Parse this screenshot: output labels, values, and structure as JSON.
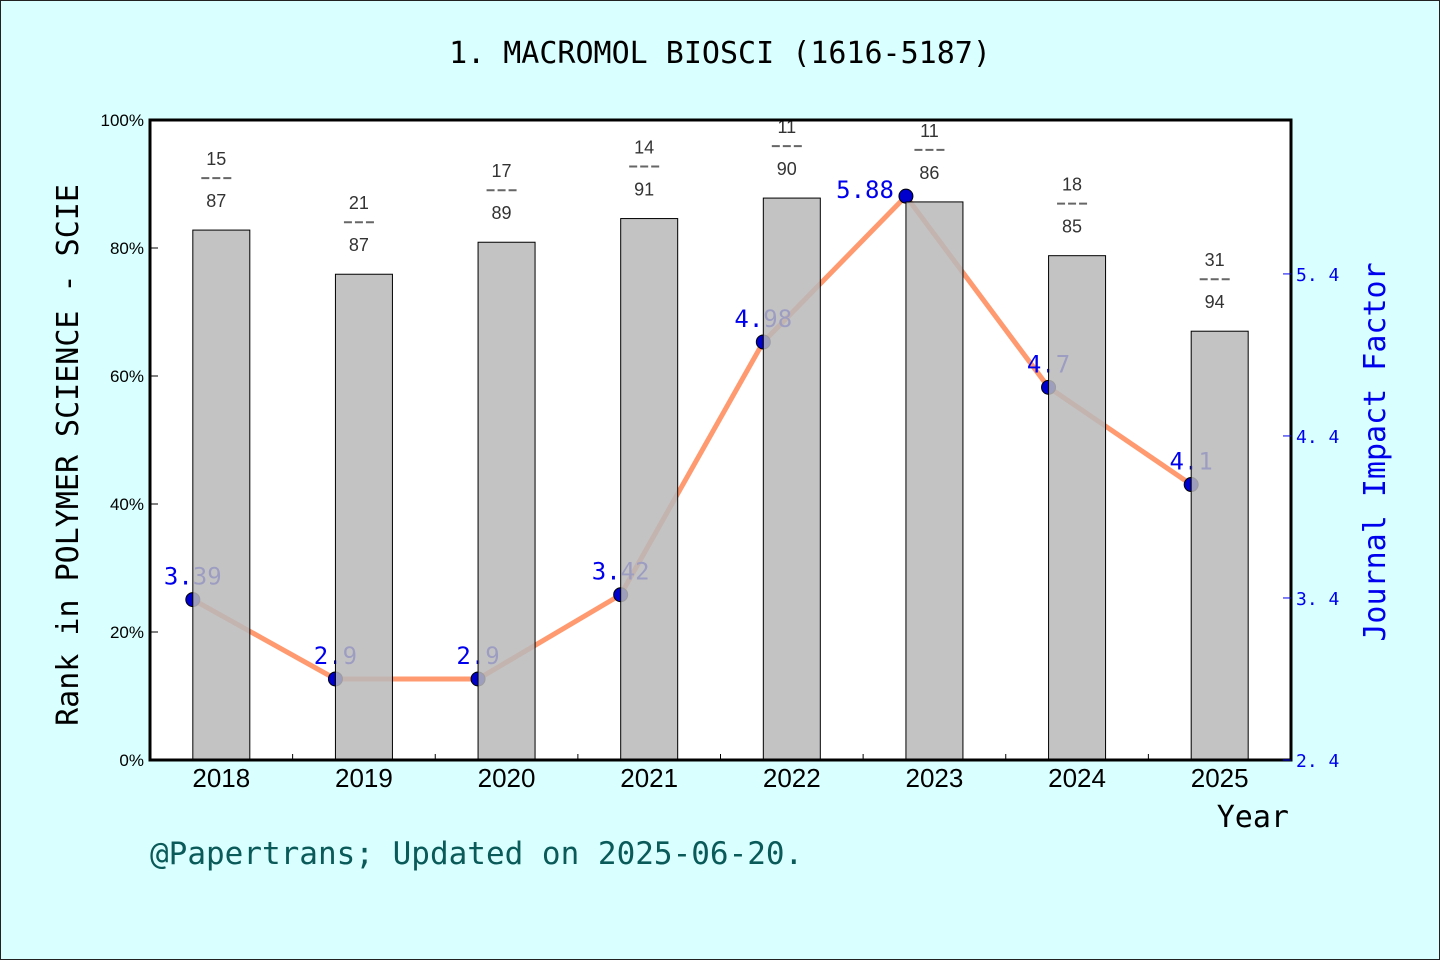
{
  "chart_data": {
    "type": "bar+line",
    "title": "1. MACROMOL BIOSCI (1616-5187)",
    "xlabel": "Year",
    "ylabel": "Rank in POLYMER SCIENCE - SCIE",
    "y2label": "Journal Impact Factor",
    "categories": [
      "2018",
      "2019",
      "2020",
      "2021",
      "2022",
      "2023",
      "2024",
      "2025"
    ],
    "ylim": [
      0,
      100
    ],
    "yticks": [
      "0%",
      "20%",
      "40%",
      "60%",
      "80%",
      "100%"
    ],
    "y2lim": [
      2.4,
      6.35
    ],
    "y2ticks": [
      "2.4",
      "3.4",
      "4.4",
      "5.4"
    ],
    "series": [
      {
        "kind": "bar",
        "values": [
          82.8,
          75.9,
          80.9,
          84.6,
          87.8,
          87.2,
          78.8,
          67.0
        ],
        "ranks": [
          "15",
          "21",
          "17",
          "14",
          "11",
          "11",
          "18",
          "31"
        ],
        "totals": [
          "87",
          "87",
          "89",
          "91",
          "90",
          "86",
          "85",
          "94"
        ],
        "color": "#b8b9ba"
      },
      {
        "kind": "line",
        "axis": "right",
        "values": [
          3.39,
          2.9,
          2.9,
          3.42,
          4.98,
          5.88,
          4.7,
          4.1
        ],
        "labels": [
          "3.39",
          "2.9",
          "2.9",
          "3.42",
          "4.98",
          "5.88",
          "4.7",
          "4.1"
        ],
        "color": "#ff9a70",
        "marker_color": "#0000cc"
      }
    ],
    "grid": false,
    "footer": "@Papertrans; Updated on 2025-06-20."
  }
}
